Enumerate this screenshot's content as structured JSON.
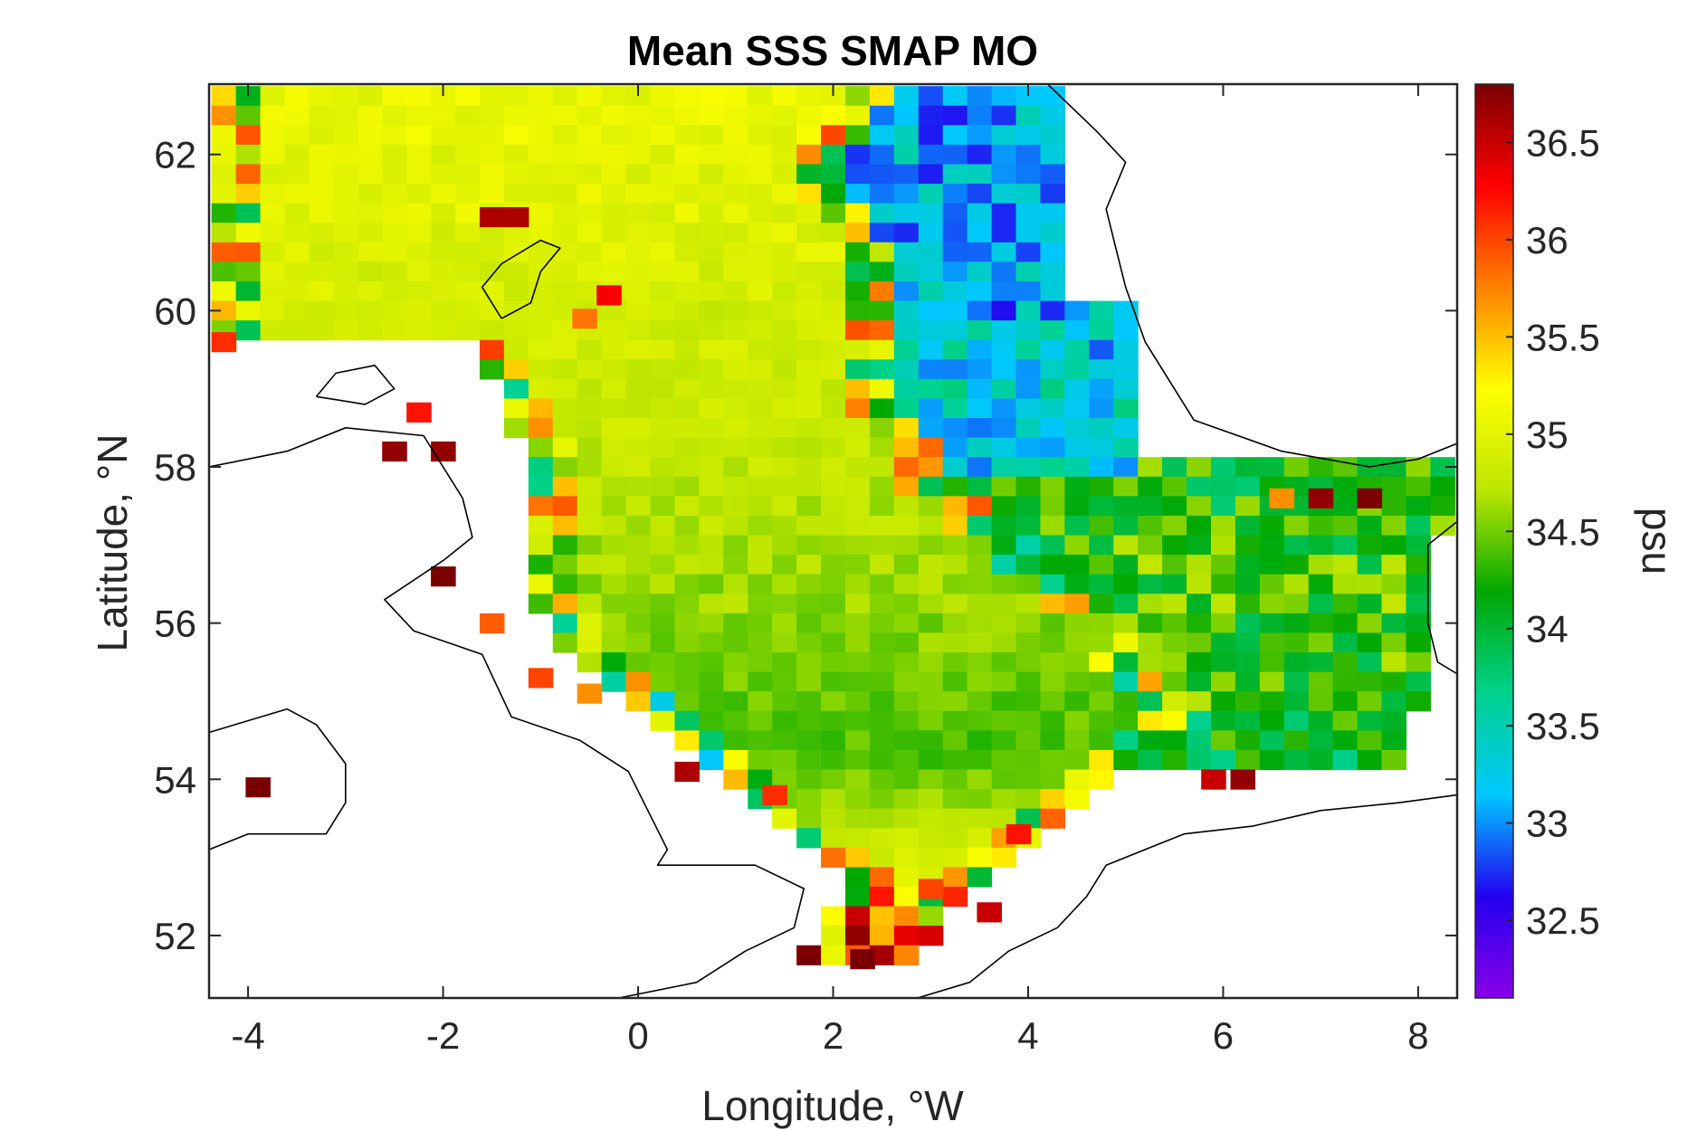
{
  "chart_data": {
    "type": "heatmap",
    "title": "Mean SSS SMAP MO",
    "xlabel": "Longitude, °W",
    "ylabel": "Latitude, °N",
    "colorbar_label": "psu",
    "xlim": [
      -4.4,
      8.4
    ],
    "ylim": [
      51.2,
      62.9
    ],
    "x_ticks": [
      -4,
      -2,
      0,
      2,
      4,
      6,
      8
    ],
    "x_tick_labels": [
      "-4",
      "-2",
      "0",
      "2",
      "4",
      "6",
      "8"
    ],
    "y_ticks": [
      52,
      54,
      56,
      58,
      60,
      62
    ],
    "y_tick_labels": [
      "52",
      "54",
      "56",
      "58",
      "60",
      "62"
    ],
    "clim": [
      32.1,
      36.8
    ],
    "colorbar_ticks": [
      32.5,
      33,
      33.5,
      34,
      34.5,
      35,
      35.5,
      36,
      36.5
    ],
    "colorbar_tick_labels": [
      "32.5",
      "33",
      "33.5",
      "34",
      "34.5",
      "35",
      "35.5",
      "36",
      "36.5"
    ],
    "colormap": [
      "#8a00e6",
      "#2200f0",
      "#00c8ff",
      "#00d28c",
      "#00a800",
      "#bde600",
      "#ffff00",
      "#ff8000",
      "#ff0000",
      "#7a0000"
    ],
    "grid": false,
    "grid_cell_deg": 0.25,
    "lat_rows": [
      {
        "lat": 62.75,
        "lon_min": -4.25,
        "lon_max": 2.5,
        "mean": 35.05
      },
      {
        "lat": 62.5,
        "lon_min": -4.25,
        "lon_max": 2.25,
        "mean": 35.05
      },
      {
        "lat": 62.25,
        "lon_min": -4.25,
        "lon_max": 2.25,
        "mean": 35.05
      },
      {
        "lat": 62.0,
        "lon_min": -4.25,
        "lon_max": 2.0,
        "mean": 35.0
      },
      {
        "lat": 61.75,
        "lon_min": -4.25,
        "lon_max": 2.0,
        "mean": 35.0
      },
      {
        "lat": 61.5,
        "lon_min": -4.25,
        "lon_max": 2.0,
        "mean": 35.0
      },
      {
        "lat": 61.25,
        "lon_min": -4.25,
        "lon_max": 2.25,
        "mean": 35.0
      },
      {
        "lat": 61.0,
        "lon_min": -4.25,
        "lon_max": 2.25,
        "mean": 34.95
      },
      {
        "lat": 60.75,
        "lon_min": -4.25,
        "lon_max": 2.5,
        "mean": 34.95
      },
      {
        "lat": 60.5,
        "lon_min": -4.25,
        "lon_max": 2.5,
        "mean": 34.9
      },
      {
        "lat": 60.25,
        "lon_min": -4.25,
        "lon_max": 2.5,
        "mean": 34.9
      },
      {
        "lat": 60.0,
        "lon_min": -4.25,
        "lon_max": 2.5,
        "mean": 34.85
      },
      {
        "lat": 59.75,
        "lon_min": -4.25,
        "lon_max": 2.5,
        "mean": 34.85
      },
      {
        "lat": 59.5,
        "lon_min": -1.5,
        "lon_max": 2.5,
        "mean": 34.85
      },
      {
        "lat": 59.25,
        "lon_min": -1.5,
        "lon_max": 2.5,
        "mean": 34.8
      },
      {
        "lat": 59.0,
        "lon_min": -1.25,
        "lon_max": 2.5,
        "mean": 34.8
      },
      {
        "lat": 58.75,
        "lon_min": -1.25,
        "lon_max": 2.5,
        "mean": 34.8
      },
      {
        "lat": 58.5,
        "lon_min": -1.25,
        "lon_max": 2.75,
        "mean": 34.8
      },
      {
        "lat": 58.25,
        "lon_min": -1.0,
        "lon_max": 3.0,
        "mean": 34.75
      },
      {
        "lat": 58.0,
        "lon_min": -1.0,
        "lon_max": 3.0,
        "mean": 34.75
      },
      {
        "lat": 57.75,
        "lon_min": -1.0,
        "lon_max": 3.0,
        "mean": 34.7
      },
      {
        "lat": 57.5,
        "lon_min": -1.0,
        "lon_max": 3.5,
        "mean": 34.7
      },
      {
        "lat": 57.25,
        "lon_min": -1.0,
        "lon_max": 3.5,
        "mean": 34.7
      },
      {
        "lat": 57.0,
        "lon_min": -1.0,
        "lon_max": 4.0,
        "mean": 34.65
      },
      {
        "lat": 56.75,
        "lon_min": -1.0,
        "lon_max": 4.0,
        "mean": 34.65
      },
      {
        "lat": 56.5,
        "lon_min": -1.0,
        "lon_max": 4.5,
        "mean": 34.6
      },
      {
        "lat": 56.25,
        "lon_min": -1.0,
        "lon_max": 4.5,
        "mean": 34.6
      },
      {
        "lat": 56.0,
        "lon_min": -0.75,
        "lon_max": 5.0,
        "mean": 34.55
      },
      {
        "lat": 55.75,
        "lon_min": -0.75,
        "lon_max": 5.0,
        "mean": 34.55
      },
      {
        "lat": 55.5,
        "lon_min": -0.5,
        "lon_max": 5.0,
        "mean": 34.5
      },
      {
        "lat": 55.25,
        "lon_min": -0.25,
        "lon_max": 5.25,
        "mean": 34.5
      },
      {
        "lat": 55.0,
        "lon_min": 0.0,
        "lon_max": 5.5,
        "mean": 34.45
      },
      {
        "lat": 54.75,
        "lon_min": 0.25,
        "lon_max": 5.5,
        "mean": 34.45
      },
      {
        "lat": 54.5,
        "lon_min": 0.5,
        "lon_max": 5.25,
        "mean": 34.4
      },
      {
        "lat": 54.25,
        "lon_min": 0.75,
        "lon_max": 5.0,
        "mean": 34.4
      },
      {
        "lat": 54.0,
        "lon_min": 1.0,
        "lon_max": 4.75,
        "mean": 34.5
      },
      {
        "lat": 53.75,
        "lon_min": 1.25,
        "lon_max": 4.5,
        "mean": 34.6
      },
      {
        "lat": 53.5,
        "lon_min": 1.5,
        "lon_max": 4.25,
        "mean": 34.7
      },
      {
        "lat": 53.25,
        "lon_min": 1.75,
        "lon_max": 4.0,
        "mean": 34.8
      },
      {
        "lat": 53.0,
        "lon_min": 2.0,
        "lon_max": 3.75,
        "mean": 34.9
      },
      {
        "lat": 52.75,
        "lon_min": 2.25,
        "lon_max": 3.5,
        "mean": 35.0
      },
      {
        "lat": 52.5,
        "lon_min": 2.25,
        "lon_max": 3.25,
        "mean": 35.1
      },
      {
        "lat": 52.25,
        "lon_min": 2.0,
        "lon_max": 3.0,
        "mean": 35.4
      },
      {
        "lat": 52.0,
        "lon_min": 2.0,
        "lon_max": 3.0,
        "mean": 35.6
      },
      {
        "lat": 51.75,
        "lon_min": 1.75,
        "lon_max": 2.75,
        "mean": 35.8
      }
    ],
    "east_zones": [
      {
        "lat_min": 60.0,
        "lat_max": 62.75,
        "lon_min": 2.25,
        "lon_max": 4.25,
        "value": 33.1
      },
      {
        "lat_min": 58.0,
        "lat_max": 60.0,
        "lon_min": 2.75,
        "lon_max": 5.0,
        "value": 33.3
      },
      {
        "lat_min": 57.25,
        "lat_max": 58.0,
        "lon_min": 3.0,
        "lon_max": 8.25,
        "value": 34.2
      },
      {
        "lat_min": 55.0,
        "lat_max": 57.25,
        "lon_min": 4.0,
        "lon_max": 8.0,
        "value": 34.3
      },
      {
        "lat_min": 54.25,
        "lat_max": 55.0,
        "lon_min": 5.0,
        "lon_max": 7.75,
        "value": 34.1
      }
    ],
    "coastal_cells": [
      {
        "lon": -3.9,
        "lat": 53.9,
        "value": 36.8
      },
      {
        "lon": -2.5,
        "lat": 58.2,
        "value": 36.7
      },
      {
        "lon": -2.0,
        "lat": 58.2,
        "value": 36.7
      },
      {
        "lon": -2.25,
        "lat": 58.7,
        "value": 36.2
      },
      {
        "lon": -2.0,
        "lat": 56.6,
        "value": 36.8
      },
      {
        "lon": -1.5,
        "lat": 56.0,
        "value": 35.9
      },
      {
        "lon": -1.0,
        "lat": 55.3,
        "value": 36.0
      },
      {
        "lon": -0.5,
        "lat": 55.1,
        "value": 35.7
      },
      {
        "lon": 0.5,
        "lat": 54.1,
        "value": 36.6
      },
      {
        "lon": -1.5,
        "lat": 61.2,
        "value": 36.6
      },
      {
        "lon": -1.25,
        "lat": 61.2,
        "value": 36.6
      },
      {
        "lon": -0.3,
        "lat": 60.2,
        "value": 36.3
      },
      {
        "lon": -0.55,
        "lat": 59.9,
        "value": 35.8
      },
      {
        "lon": -4.25,
        "lat": 59.6,
        "value": 36.1
      },
      {
        "lon": 2.3,
        "lat": 51.7,
        "value": 36.8
      },
      {
        "lon": 3.6,
        "lat": 52.3,
        "value": 36.5
      },
      {
        "lon": 3.0,
        "lat": 52.6,
        "value": 36.0
      },
      {
        "lon": 5.9,
        "lat": 54.0,
        "value": 36.5
      },
      {
        "lon": 6.2,
        "lat": 54.0,
        "value": 36.7
      },
      {
        "lon": 7.0,
        "lat": 57.6,
        "value": 36.7
      },
      {
        "lon": 7.5,
        "lat": 57.6,
        "value": 36.8
      },
      {
        "lon": 6.6,
        "lat": 57.6,
        "value": 35.7
      },
      {
        "lon": 3.9,
        "lat": 53.3,
        "value": 36.2
      },
      {
        "lon": 1.4,
        "lat": 53.8,
        "value": 36.1
      }
    ]
  }
}
